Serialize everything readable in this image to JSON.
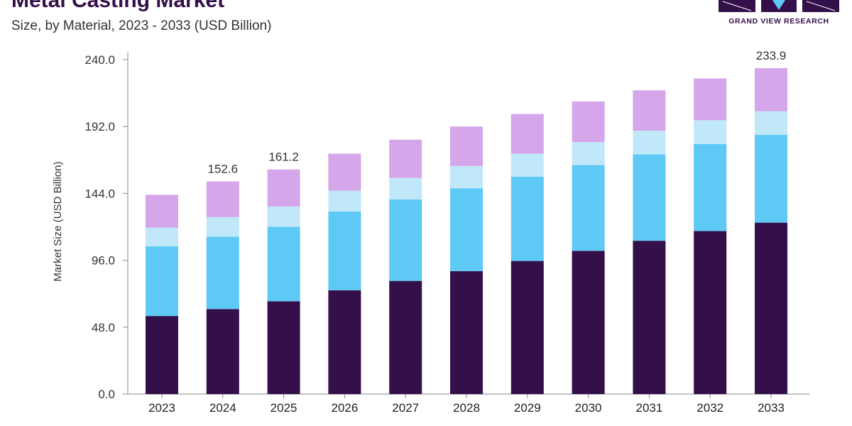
{
  "header": {
    "title": "Metal Casting Market",
    "subtitle": "Size, by Material, 2023 - 2033 (USD Billion)"
  },
  "logo": {
    "text": "GRAND VIEW RESEARCH",
    "color": "#34104a"
  },
  "chart_data": {
    "type": "bar",
    "stacked": true,
    "categories": [
      "2023",
      "2024",
      "2025",
      "2026",
      "2027",
      "2028",
      "2029",
      "2030",
      "2031",
      "2032",
      "2033"
    ],
    "series": [
      {
        "color": "#34104a",
        "values": [
          56.0,
          61.0,
          66.6,
          74.5,
          81.2,
          88.2,
          95.5,
          102.8,
          110.0,
          117.0,
          123.0
        ]
      },
      {
        "color": "#5fc9f5",
        "values": [
          50.0,
          52.0,
          53.5,
          56.5,
          58.5,
          59.5,
          60.5,
          61.5,
          62.0,
          62.5,
          63.0
        ]
      },
      {
        "color": "#c0e8f9",
        "values": [
          13.5,
          14.0,
          14.5,
          15.0,
          15.5,
          16.0,
          16.5,
          16.5,
          17.0,
          17.0,
          17.0
        ]
      },
      {
        "color": "#d5a6ea",
        "values": [
          23.5,
          25.6,
          26.6,
          26.5,
          27.3,
          28.3,
          28.5,
          29.2,
          29.0,
          30.0,
          30.9
        ]
      }
    ],
    "data_labels": [
      {
        "category": "2024",
        "text": "152.6"
      },
      {
        "category": "2025",
        "text": "161.2"
      },
      {
        "category": "2033",
        "text": "233.9"
      }
    ],
    "ylabel": "Market Size (USD Billion)",
    "xlabel": "",
    "ylim": [
      0,
      240
    ],
    "yticks": [
      "0.0",
      "48.0",
      "96.0",
      "144.0",
      "192.0",
      "240.0"
    ],
    "grid": false,
    "legend": "none"
  }
}
